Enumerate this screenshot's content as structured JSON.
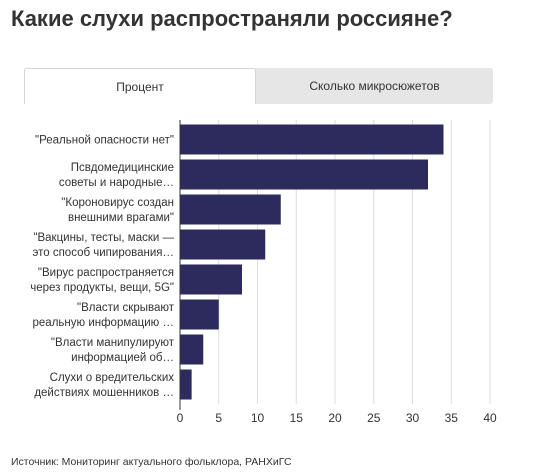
{
  "title": "Какие слухи распространяли россияне?",
  "tabs": [
    {
      "label": "Процент",
      "active": true
    },
    {
      "label": "Сколько микросюжетов",
      "active": false
    }
  ],
  "source": "Источник: Мониторинг актуального фольклора, РАНХиГС",
  "colors": {
    "bar": "#2d2b5e",
    "grid": "#dddddd",
    "axis": "#333333",
    "tab_bg": "#e6e6e6"
  },
  "chart_data": {
    "type": "bar",
    "orientation": "horizontal",
    "categories": [
      [
        "\"Реальной опасности нет\""
      ],
      [
        "Псвдомедицинские",
        "советы и народные…"
      ],
      [
        "\"Коронowирус создан",
        "внешними врагами\""
      ],
      [
        "\"Вакцины, тесты, маски —",
        "это способ чипирования…"
      ],
      [
        "\"Вирус распространяется",
        "через продукты, вещи, 5G\""
      ],
      [
        "\"Власти скрывают",
        "реальную информацию …"
      ],
      [
        "\"Власти манипулируют",
        "информацией об…"
      ],
      [
        "Слухи о вредительских",
        "действиях мошенников …"
      ]
    ],
    "values": [
      34,
      32,
      13,
      11,
      8,
      5,
      3,
      1.5
    ],
    "xlim": [
      0,
      40
    ],
    "xticks": [
      0,
      5,
      10,
      15,
      20,
      25,
      30,
      35,
      40
    ],
    "grid": true
  }
}
